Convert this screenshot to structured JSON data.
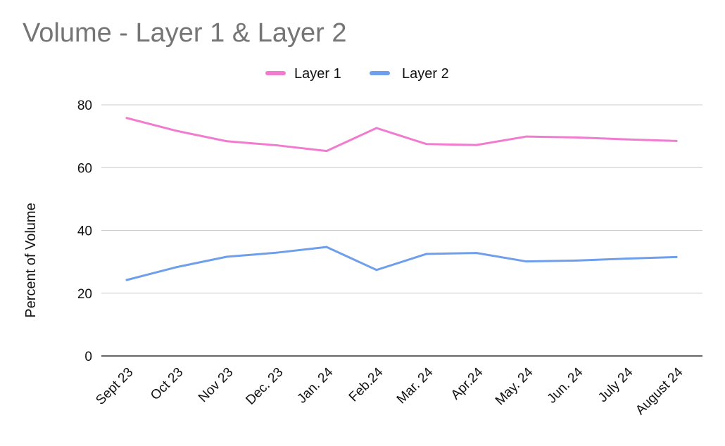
{
  "chart_data": {
    "type": "line",
    "title": "Volume - Layer 1 & Layer 2",
    "xlabel": "",
    "ylabel": "Percent of Volume",
    "ylim": [
      0,
      80
    ],
    "yticks": [
      "0",
      "20",
      "40",
      "60",
      "80"
    ],
    "grid": true,
    "legend_position": "top-center",
    "categories": [
      "Sept 23",
      "Oct 23",
      "Nov 23",
      "Dec. 23",
      "Jan. 24",
      "Feb.24",
      "Mar. 24",
      "Apr.24",
      "May. 24",
      "Jun. 24",
      "July 24",
      "August 24"
    ],
    "series": [
      {
        "name": "Layer 1",
        "color": "#f17ccf",
        "values": [
          75.8,
          71.7,
          68.4,
          67.1,
          65.3,
          72.6,
          67.5,
          67.2,
          69.9,
          69.6,
          69.0,
          68.5
        ]
      },
      {
        "name": "Layer 2",
        "color": "#6f9eea",
        "values": [
          24.2,
          28.3,
          31.6,
          32.9,
          34.7,
          27.4,
          32.5,
          32.8,
          30.1,
          30.4,
          31.0,
          31.5
        ]
      }
    ]
  }
}
